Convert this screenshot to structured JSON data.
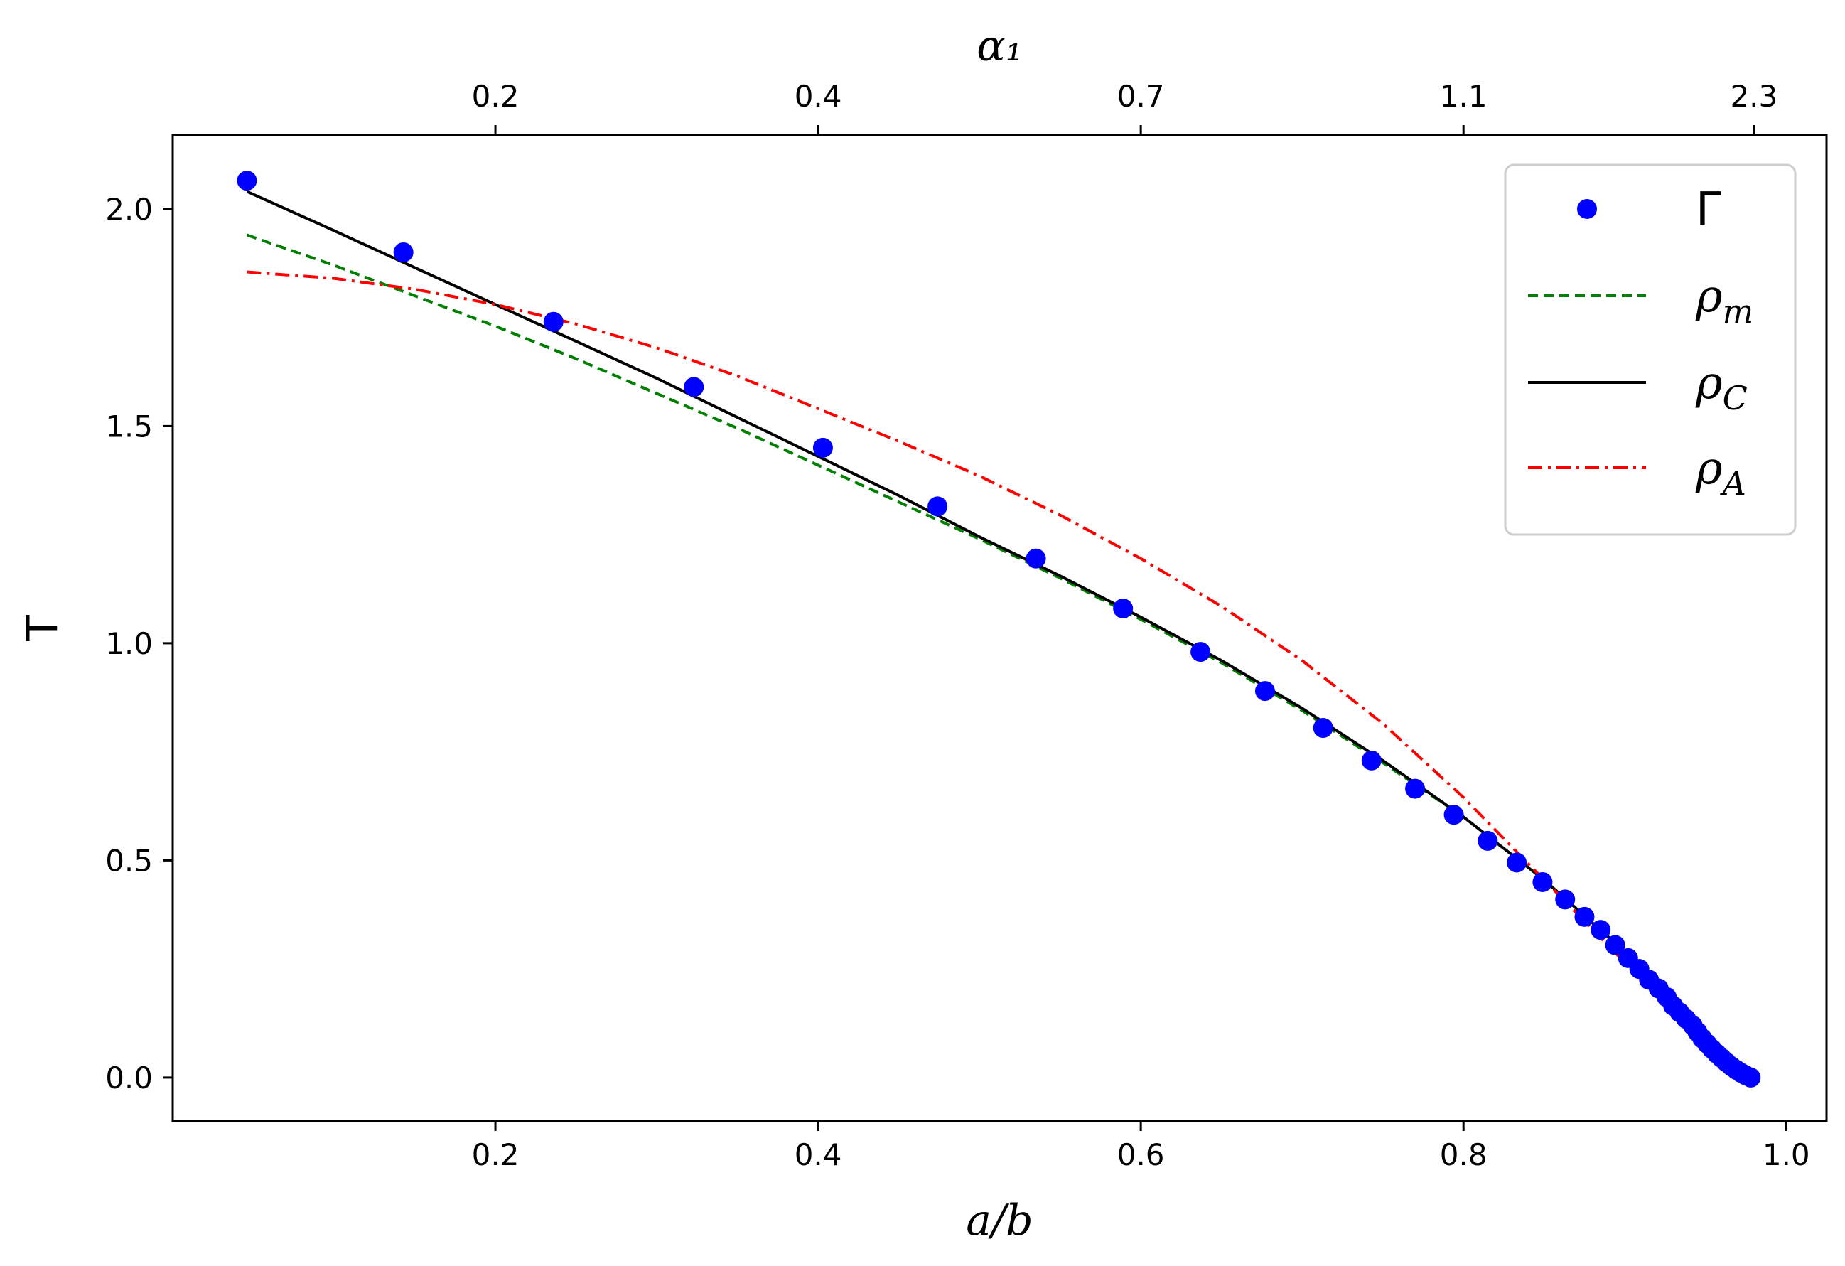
{
  "chart_data": {
    "type": "line",
    "xlabel": "a/b",
    "ylabel": "T",
    "top_xlabel": "α₁",
    "xlim": [
      0.0,
      1.025
    ],
    "ylim": [
      -0.1,
      2.17
    ],
    "xticks": [
      0.2,
      0.4,
      0.6,
      0.8,
      1.0
    ],
    "xtick_labels": [
      "0.2",
      "0.4",
      "0.6",
      "0.8",
      "1.0"
    ],
    "yticks": [
      0.0,
      0.5,
      1.0,
      1.5,
      2.0
    ],
    "ytick_labels": [
      "0.0",
      "0.5",
      "1.0",
      "1.5",
      "2.0"
    ],
    "top_ticks_at_x": [
      0.2,
      0.4,
      0.6,
      0.8,
      0.98
    ],
    "top_tick_labels": [
      "0.2",
      "0.4",
      "0.7",
      "1.1",
      "2.3"
    ],
    "grid": false,
    "legend_position": "top-right",
    "series": [
      {
        "name": "Γ",
        "kind": "scatter",
        "color": "#0000ff",
        "x": [
          0.046,
          0.143,
          0.236,
          0.323,
          0.403,
          0.474,
          0.535,
          0.589,
          0.637,
          0.677,
          0.713,
          0.743,
          0.77,
          0.794,
          0.815,
          0.833,
          0.849,
          0.863,
          0.875,
          0.885,
          0.894,
          0.902,
          0.909,
          0.915,
          0.921,
          0.926,
          0.93,
          0.934,
          0.938,
          0.942,
          0.945,
          0.948,
          0.951,
          0.954,
          0.957,
          0.96,
          0.963,
          0.966,
          0.969,
          0.972,
          0.975,
          0.978
        ],
        "y": [
          2.065,
          1.9,
          1.74,
          1.59,
          1.45,
          1.315,
          1.195,
          1.08,
          0.98,
          0.89,
          0.805,
          0.73,
          0.665,
          0.605,
          0.545,
          0.495,
          0.45,
          0.41,
          0.37,
          0.34,
          0.305,
          0.275,
          0.25,
          0.225,
          0.205,
          0.185,
          0.165,
          0.15,
          0.135,
          0.12,
          0.105,
          0.09,
          0.078,
          0.066,
          0.055,
          0.045,
          0.035,
          0.026,
          0.018,
          0.011,
          0.005,
          0.0
        ]
      },
      {
        "name": "ρ_m",
        "kind": "line",
        "dash": "dashed",
        "color": "#008000",
        "x": [
          0.046,
          0.1,
          0.15,
          0.2,
          0.25,
          0.3,
          0.35,
          0.4,
          0.45,
          0.5,
          0.55,
          0.6,
          0.65,
          0.7,
          0.75,
          0.8,
          0.85,
          0.9,
          0.93,
          0.96,
          0.98
        ],
        "y": [
          1.94,
          1.87,
          1.8,
          1.73,
          1.655,
          1.575,
          1.495,
          1.41,
          1.325,
          1.24,
          1.15,
          1.055,
          0.955,
          0.845,
          0.725,
          0.6,
          0.455,
          0.29,
          0.18,
          0.07,
          0.0
        ]
      },
      {
        "name": "ρ_C",
        "kind": "line",
        "dash": "solid",
        "color": "#000000",
        "x": [
          0.046,
          0.1,
          0.15,
          0.2,
          0.25,
          0.3,
          0.35,
          0.4,
          0.45,
          0.5,
          0.55,
          0.6,
          0.65,
          0.7,
          0.75,
          0.8,
          0.85,
          0.9,
          0.93,
          0.96,
          0.98
        ],
        "y": [
          2.04,
          1.95,
          1.865,
          1.78,
          1.695,
          1.61,
          1.52,
          1.43,
          1.34,
          1.245,
          1.155,
          1.06,
          0.96,
          0.85,
          0.73,
          0.6,
          0.455,
          0.29,
          0.18,
          0.07,
          0.0
        ]
      },
      {
        "name": "ρ_A",
        "kind": "line",
        "dash": "dashdot",
        "color": "#ff0000",
        "x": [
          0.046,
          0.1,
          0.15,
          0.2,
          0.25,
          0.3,
          0.35,
          0.4,
          0.45,
          0.5,
          0.55,
          0.6,
          0.65,
          0.7,
          0.75,
          0.8,
          0.85,
          0.9,
          0.93,
          0.96,
          0.98
        ],
        "y": [
          1.855,
          1.84,
          1.815,
          1.78,
          1.735,
          1.68,
          1.615,
          1.54,
          1.465,
          1.385,
          1.295,
          1.195,
          1.085,
          0.96,
          0.815,
          0.645,
          0.455,
          0.265,
          0.16,
          0.06,
          0.0
        ]
      }
    ]
  },
  "legend": {
    "entries": [
      {
        "base": "ρ",
        "sub": "",
        "label": "Γ"
      },
      {
        "base": "ρ",
        "sub": "m"
      },
      {
        "base": "ρ",
        "sub": "C"
      },
      {
        "base": "ρ",
        "sub": "A"
      }
    ]
  },
  "colors": {
    "gamma": "#0000ff",
    "rho_m": "#008000",
    "rho_C": "#000000",
    "rho_A": "#ff0000"
  }
}
